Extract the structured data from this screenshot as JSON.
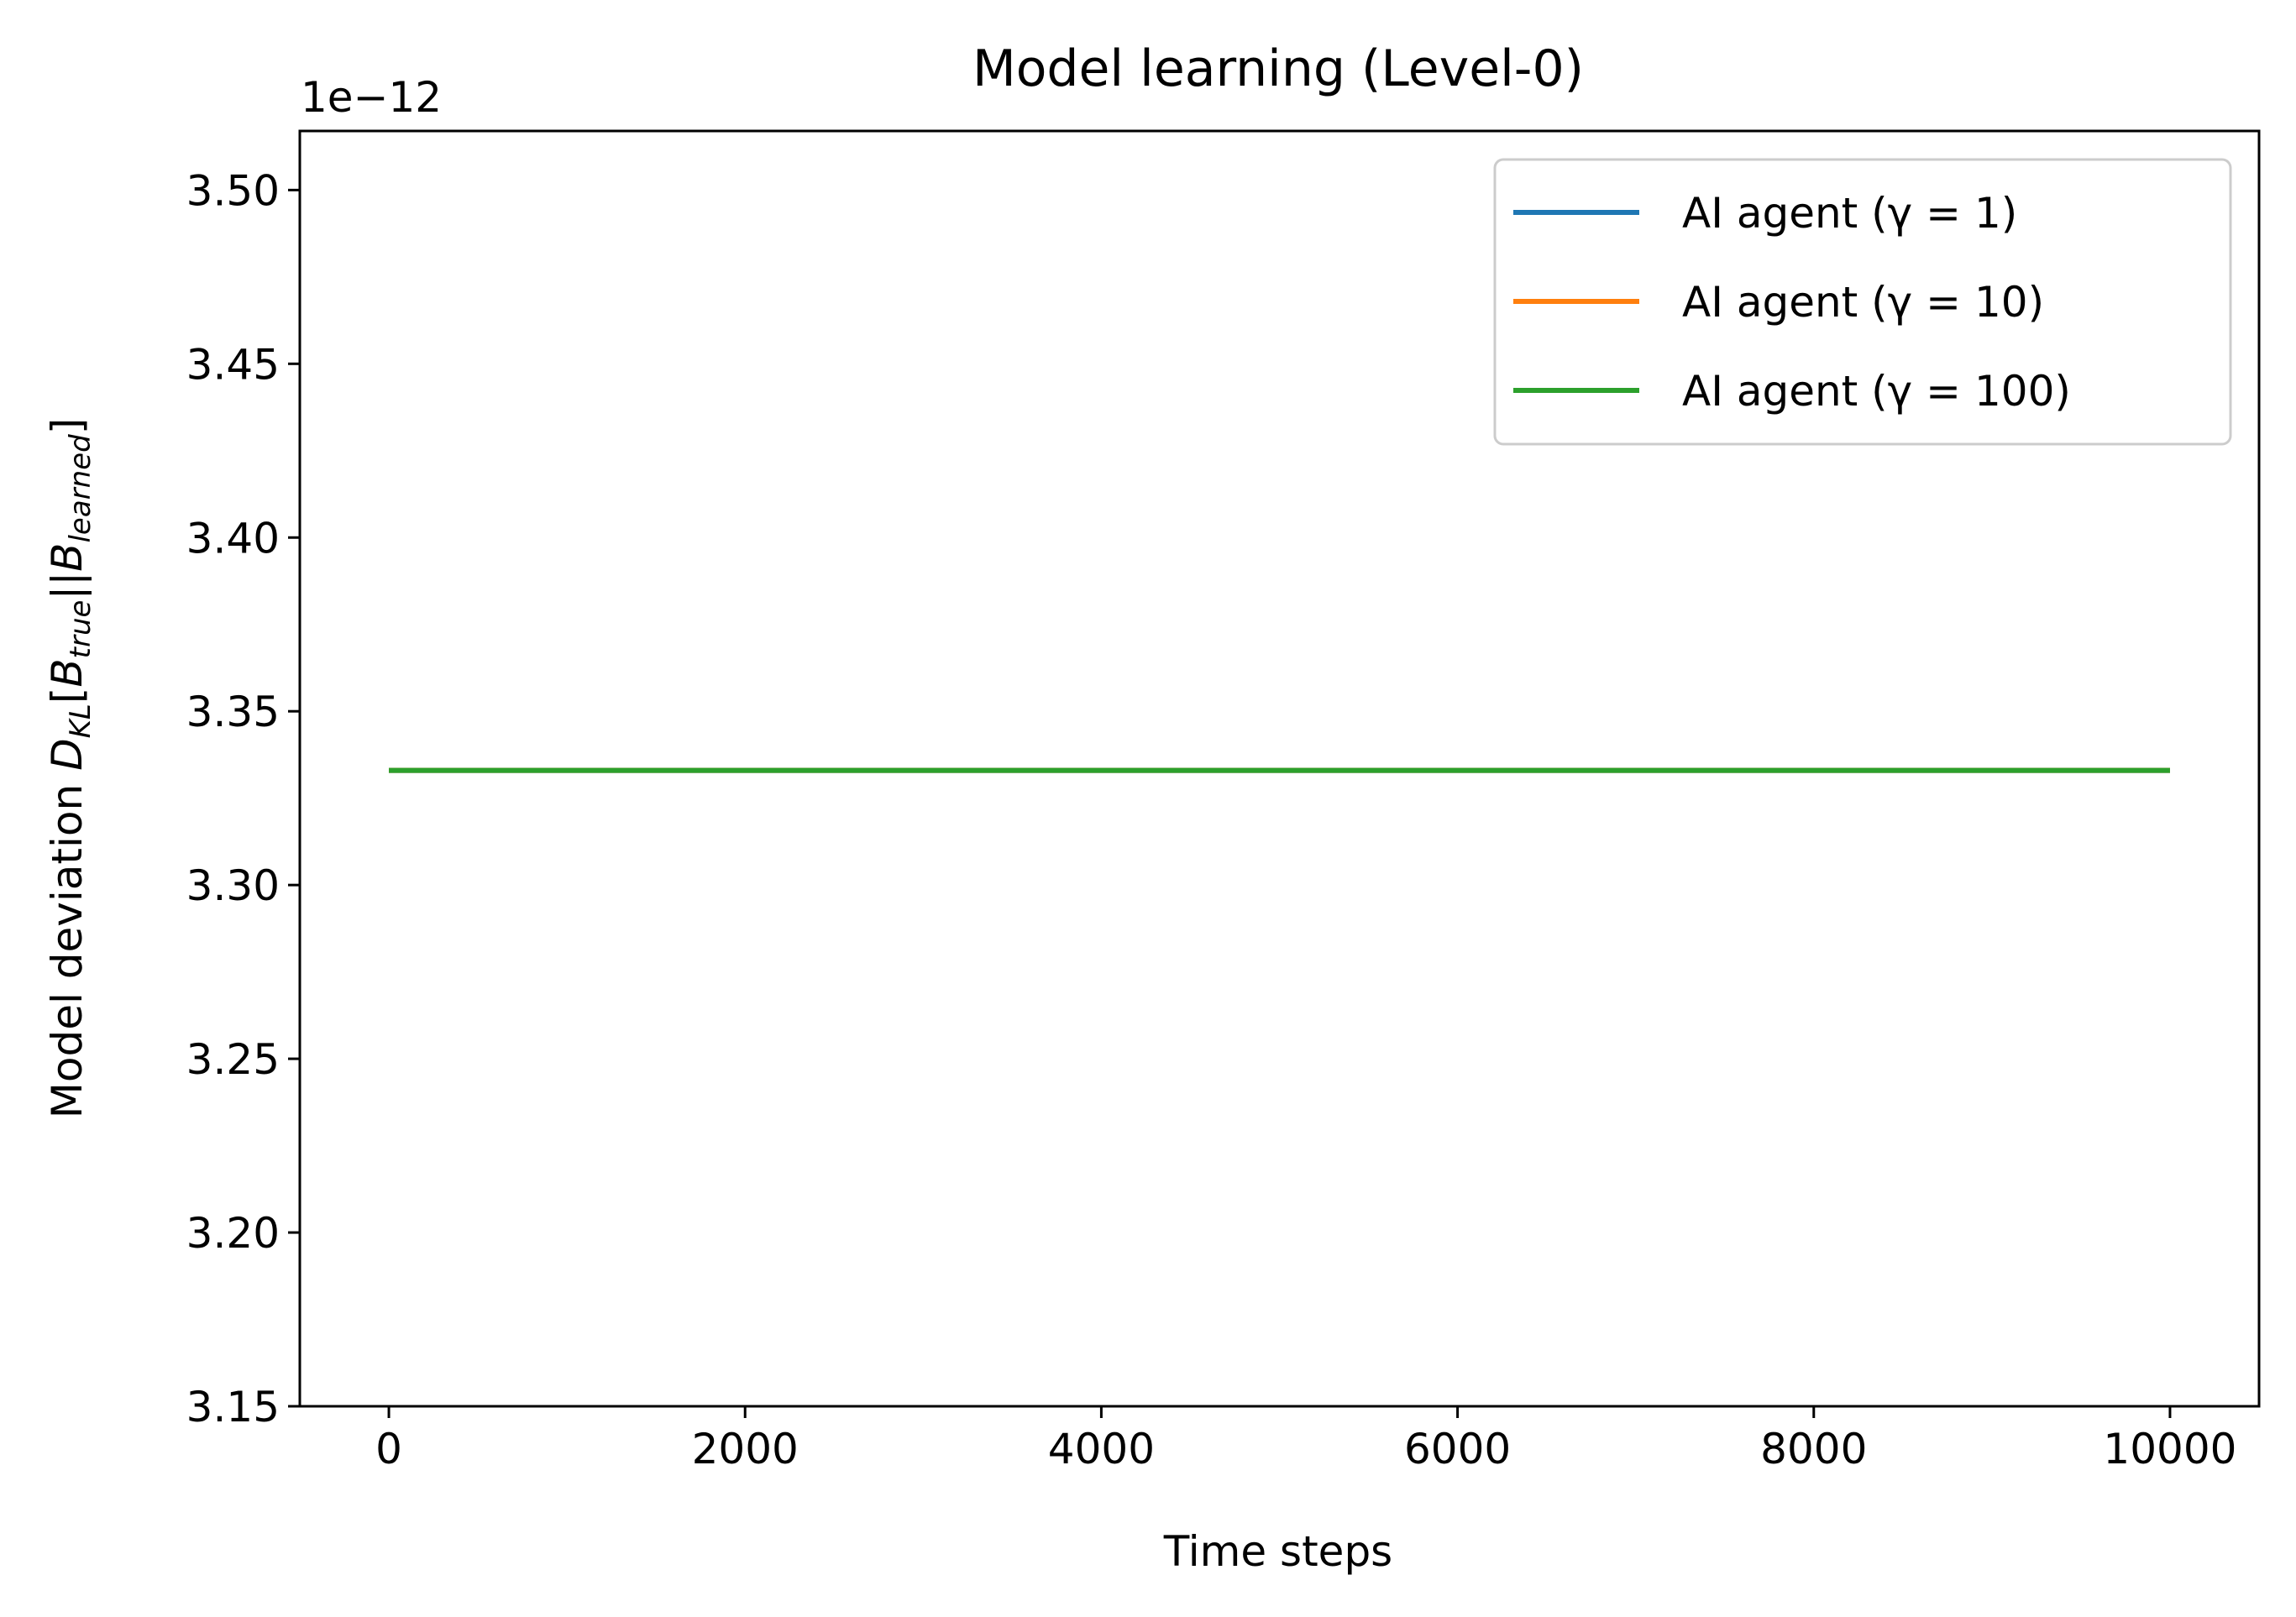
{
  "chart_data": {
    "type": "line",
    "title": "Model learning (Level-0)",
    "xlabel": "Time steps",
    "ylabel": "Model deviation  D_KL[B_true||B_learned]",
    "y_offset_label": "1e−12",
    "xlim": [
      -500,
      10500
    ],
    "ylim": [
      3.15,
      3.517
    ],
    "x_ticks": [
      0,
      2000,
      4000,
      6000,
      8000,
      10000
    ],
    "y_ticks": [
      3.15,
      3.2,
      3.25,
      3.3,
      3.35,
      3.4,
      3.45,
      3.5
    ],
    "y_tick_labels": [
      "3.15",
      "3.20",
      "3.25",
      "3.30",
      "3.35",
      "3.40",
      "3.45",
      "3.50"
    ],
    "grid": false,
    "legend_position": "top-right",
    "x": [
      0,
      10000
    ],
    "series": [
      {
        "name": "AI agent (γ = 1)",
        "color": "#1f77b4",
        "values": [
          3.333,
          3.333
        ]
      },
      {
        "name": "AI agent (γ = 10)",
        "color": "#ff7f0e",
        "values": [
          3.333,
          3.333
        ]
      },
      {
        "name": "AI agent (γ = 100)",
        "color": "#2ca02c",
        "values": [
          3.333,
          3.333
        ]
      }
    ]
  }
}
